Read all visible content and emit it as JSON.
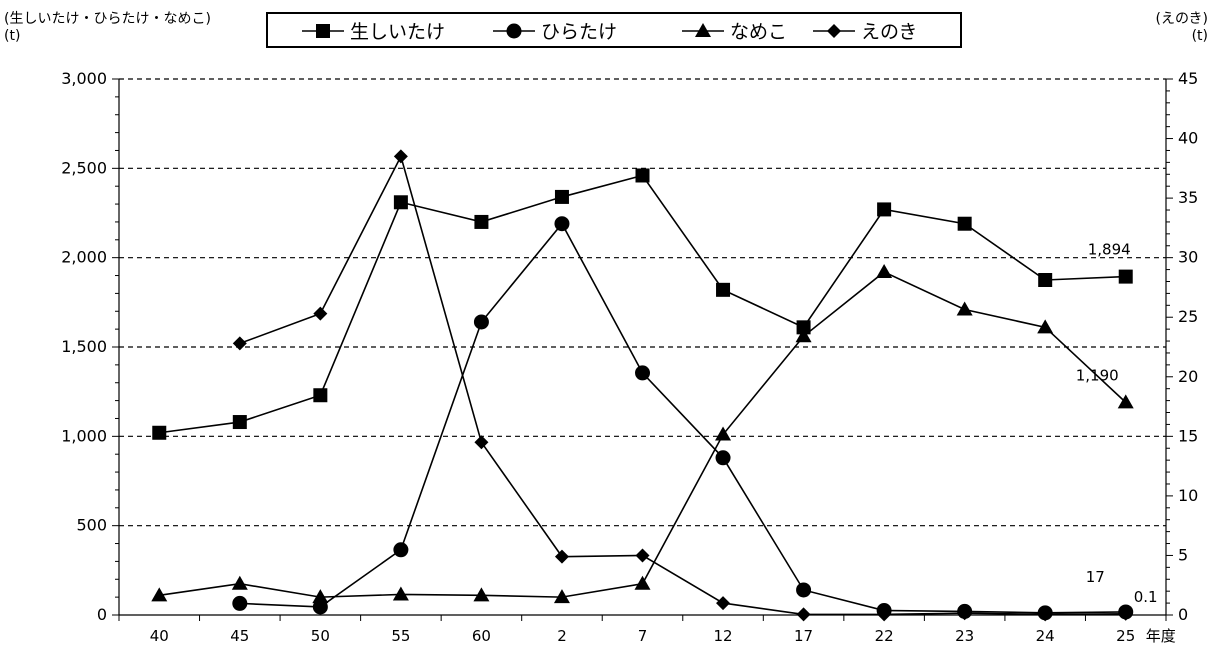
{
  "chart_data": {
    "type": "line",
    "left_axis_title": "(生しいたけ・ひらたけ・なめこ)",
    "left_axis_unit": "(t)",
    "right_axis_title": "(えのき)",
    "right_axis_unit": "(t)",
    "x_unit_label": "年度",
    "categories": [
      "40",
      "45",
      "50",
      "55",
      "60",
      "2",
      "7",
      "12",
      "17",
      "22",
      "23",
      "24",
      "25"
    ],
    "left_ylim": [
      0,
      3000
    ],
    "left_ticks": [
      "0",
      "500",
      "1,000",
      "1,500",
      "2,000",
      "2,500",
      "3,000"
    ],
    "left_tick_values": [
      0,
      500,
      1000,
      1500,
      2000,
      2500,
      3000
    ],
    "right_ylim": [
      0,
      45
    ],
    "right_ticks": [
      "0",
      "5",
      "10",
      "15",
      "20",
      "25",
      "30",
      "35",
      "40",
      "45"
    ],
    "right_tick_values": [
      0,
      5,
      10,
      15,
      20,
      25,
      30,
      35,
      40,
      45
    ],
    "gridlines": "dashed",
    "series": [
      {
        "name": "生しいたけ",
        "marker": "square",
        "axis": "left",
        "values": [
          1020,
          1080,
          1230,
          2310,
          2200,
          2340,
          2460,
          1820,
          1610,
          2270,
          2190,
          1875,
          1894
        ]
      },
      {
        "name": "ひらたけ",
        "marker": "circle",
        "axis": "left",
        "values": [
          null,
          65,
          45,
          365,
          1640,
          2190,
          1355,
          880,
          140,
          25,
          20,
          12,
          17
        ]
      },
      {
        "name": "なめこ",
        "marker": "triangle",
        "axis": "left",
        "values": [
          110,
          175,
          100,
          115,
          110,
          100,
          175,
          1010,
          1560,
          1920,
          1710,
          1610,
          1190
        ]
      },
      {
        "name": "えのき",
        "marker": "diamond",
        "axis": "right",
        "values": [
          null,
          22.8,
          25.3,
          38.5,
          14.5,
          4.9,
          5.0,
          1.0,
          0.05,
          0.05,
          0.15,
          0.05,
          0.1
        ]
      }
    ],
    "annotations": [
      {
        "text": "1,894",
        "series": 0,
        "index": 12
      },
      {
        "text": "1,190",
        "series": 2,
        "index": 12
      },
      {
        "text": "17",
        "series": 1,
        "index": 12
      },
      {
        "text": "0.1",
        "series": 3,
        "index": 12
      }
    ]
  }
}
